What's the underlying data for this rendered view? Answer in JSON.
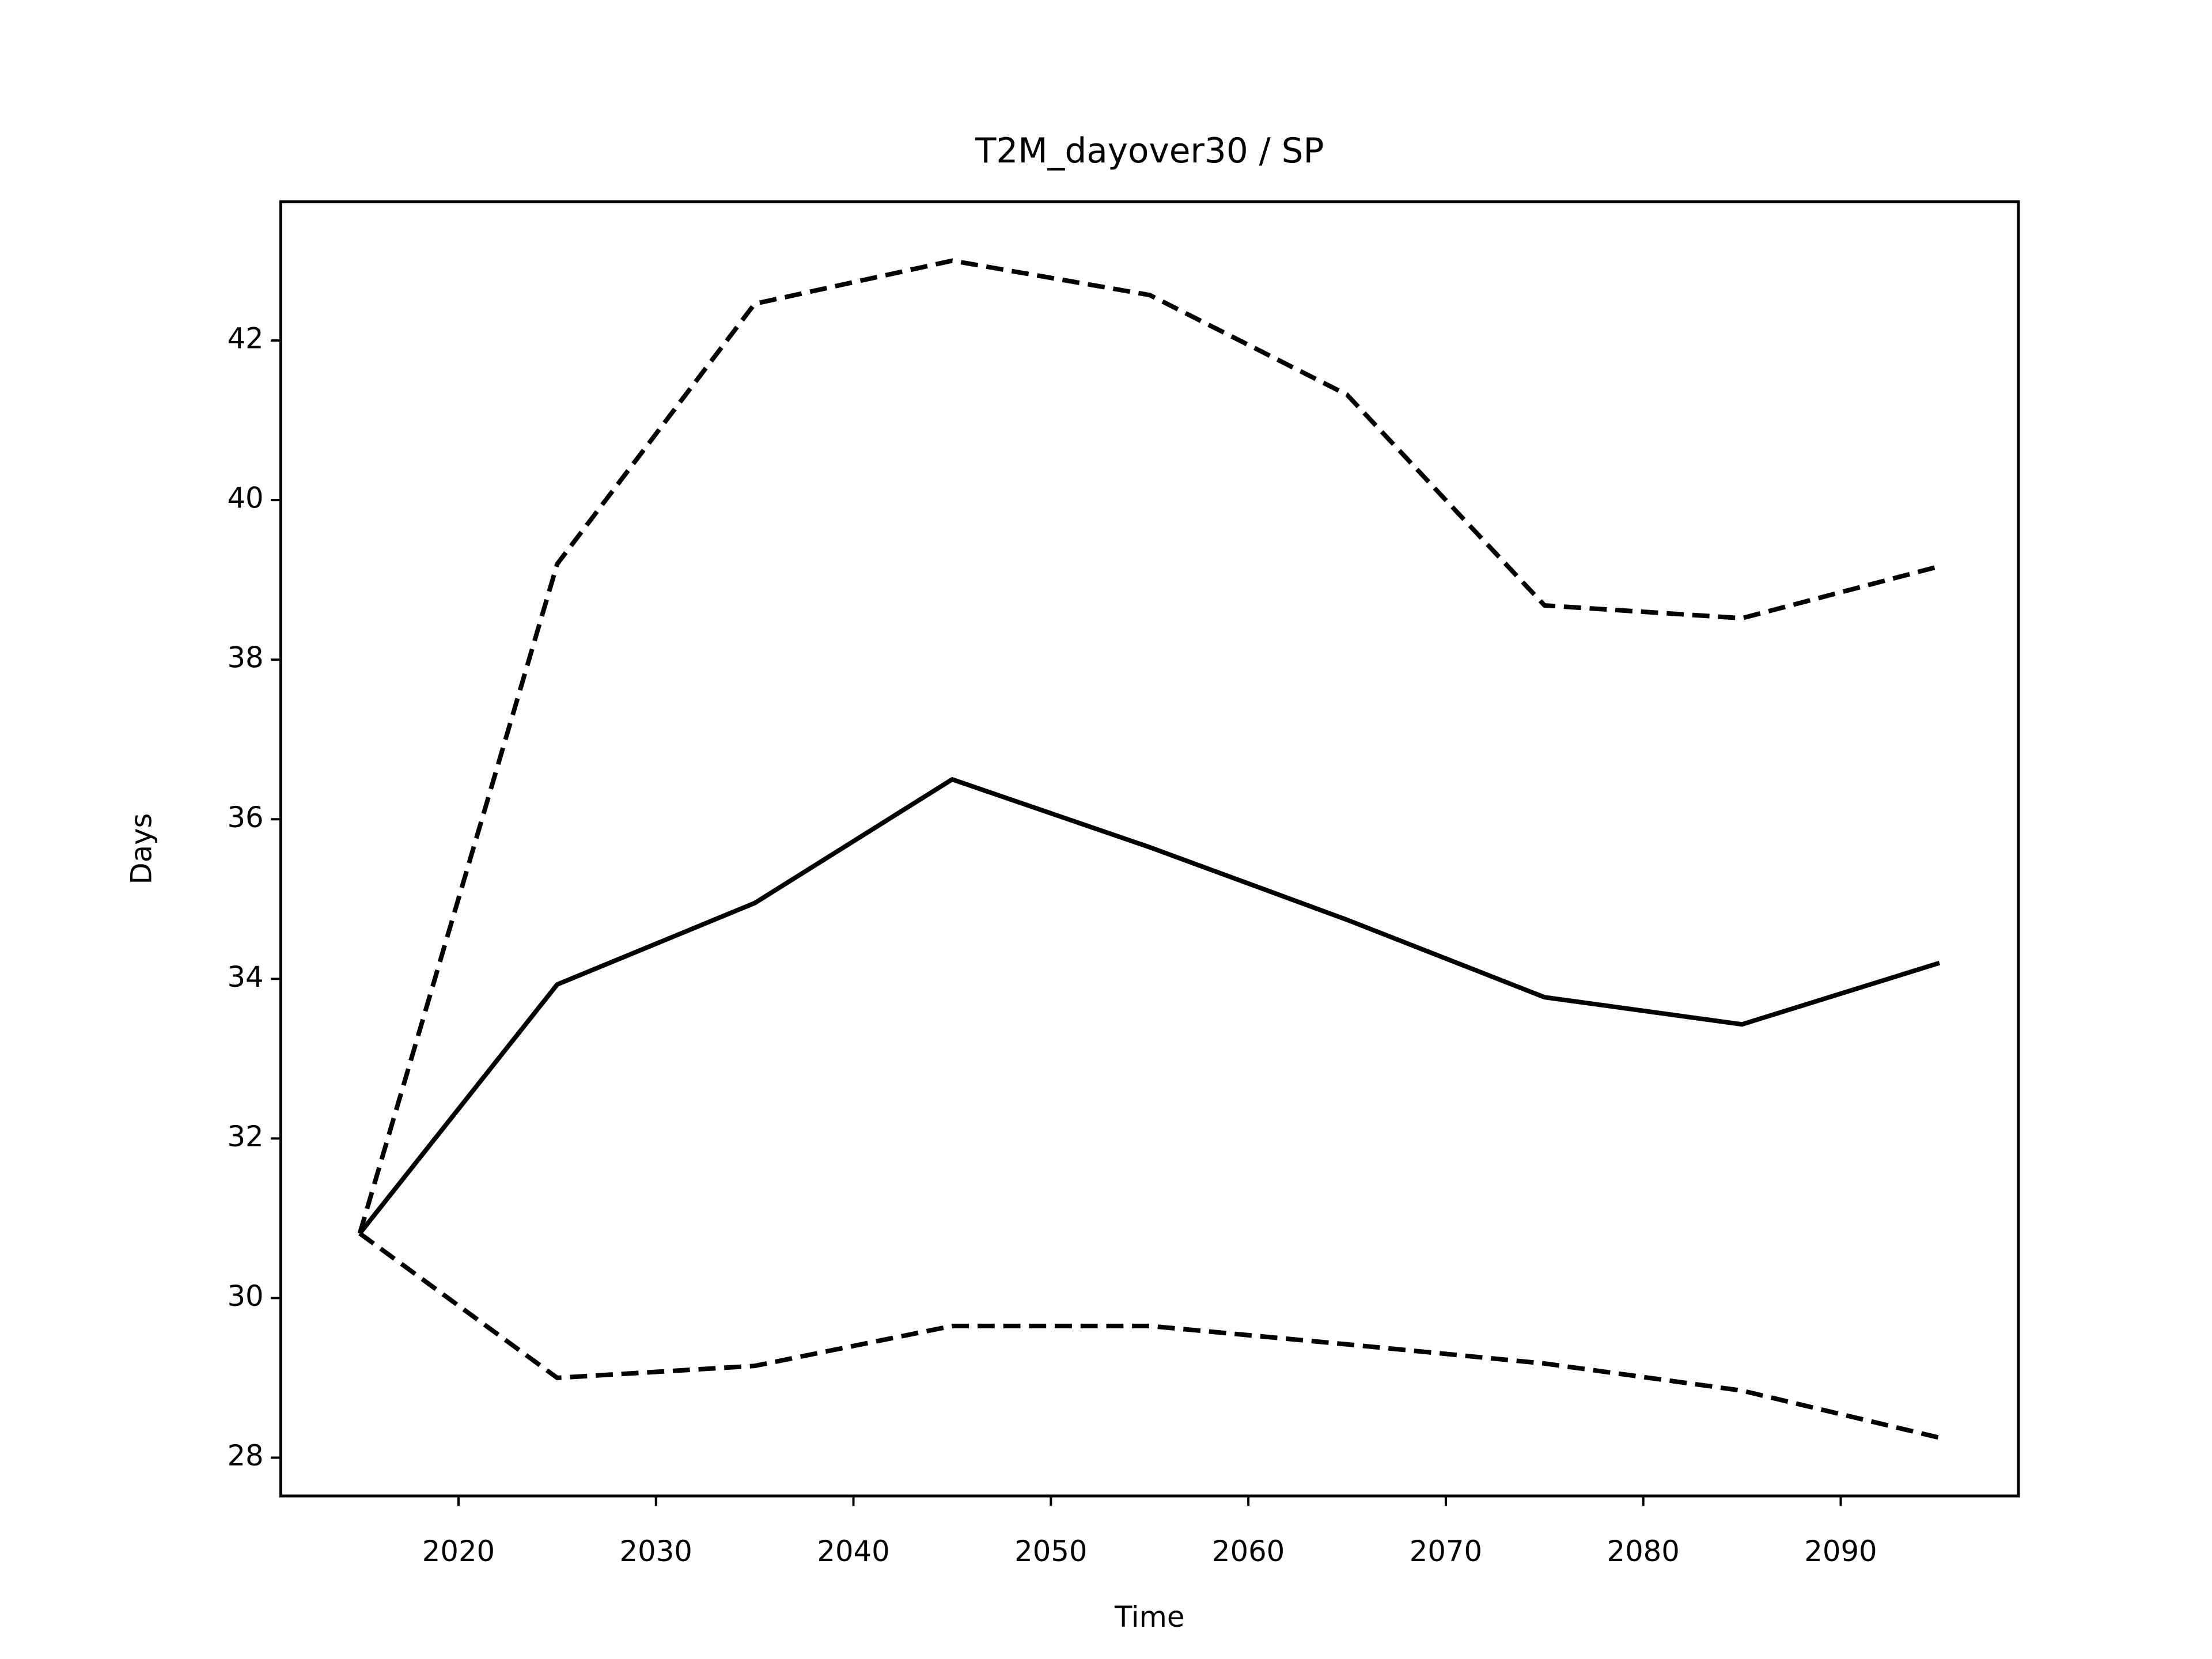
{
  "chart_data": {
    "type": "line",
    "title": "T2M_dayover30 / SP",
    "xlabel": "Time",
    "ylabel": "Days",
    "x": [
      2015,
      2025,
      2035,
      2045,
      2055,
      2065,
      2075,
      2085,
      2095
    ],
    "series": [
      {
        "color": "#000000",
        "style": "solid",
        "values": [
          30.81,
          33.93,
          34.95,
          36.5,
          35.65,
          34.74,
          33.77,
          33.43,
          34.2
        ]
      },
      {
        "color": "#000000",
        "style": "dashed",
        "values": [
          30.81,
          39.2,
          42.46,
          43.0,
          42.57,
          41.32,
          38.68,
          38.52,
          39.17
        ]
      },
      {
        "color": "#000000",
        "style": "dashed",
        "values": [
          30.81,
          29.0,
          29.15,
          29.65,
          29.65,
          29.42,
          29.18,
          28.84,
          28.25
        ]
      }
    ],
    "xlim": [
      2011,
      2099
    ],
    "xticks": [
      2020,
      2030,
      2040,
      2050,
      2060,
      2070,
      2080,
      2090
    ],
    "ylim": [
      27.52,
      43.74
    ],
    "yticks": [
      28,
      30,
      32,
      34,
      36,
      38,
      40,
      42
    ],
    "grid": false
  }
}
